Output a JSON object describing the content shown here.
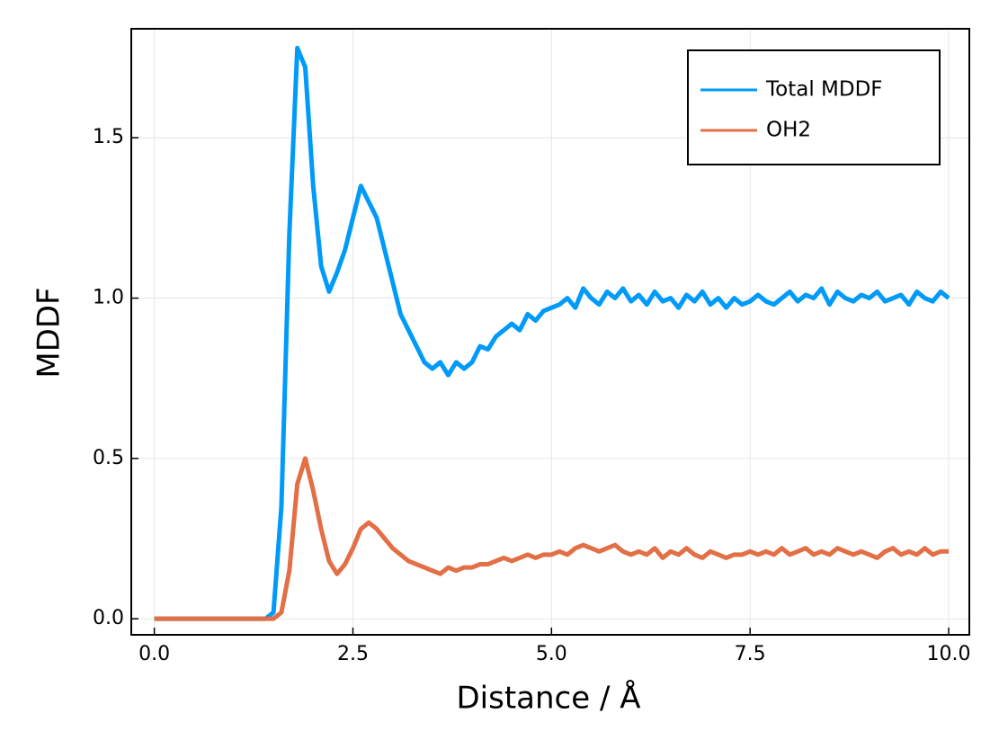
{
  "chart_data": {
    "type": "line",
    "x_label": "Distance / Å",
    "y_label": "MDDF",
    "x": [
      0,
      0.1,
      0.2,
      0.3,
      0.4,
      0.5,
      0.6,
      0.7,
      0.8,
      0.9,
      1,
      1.1,
      1.2,
      1.3,
      1.4,
      1.5,
      1.6,
      1.7,
      1.8,
      1.9,
      2,
      2.1,
      2.2,
      2.3,
      2.4,
      2.5,
      2.6,
      2.7,
      2.8,
      2.9,
      3,
      3.1,
      3.2,
      3.3,
      3.4,
      3.5,
      3.6,
      3.7,
      3.8,
      3.9,
      4,
      4.1,
      4.2,
      4.3,
      4.4,
      4.5,
      4.6,
      4.7,
      4.8,
      4.9,
      5,
      5.1,
      5.2,
      5.3,
      5.4,
      5.5,
      5.6,
      5.7,
      5.8,
      5.9,
      6,
      6.1,
      6.2,
      6.3,
      6.4,
      6.5,
      6.6,
      6.7,
      6.8,
      6.9,
      7,
      7.1,
      7.2,
      7.3,
      7.4,
      7.5,
      7.6,
      7.7,
      7.8,
      7.9,
      8,
      8.1,
      8.2,
      8.3,
      8.4,
      8.5,
      8.6,
      8.7,
      8.8,
      8.9,
      9,
      9.1,
      9.2,
      9.3,
      9.4,
      9.5,
      9.6,
      9.7,
      9.8,
      9.9,
      10
    ],
    "series": [
      {
        "name": "Total MDDF",
        "color": "#009af9",
        "values": [
          0,
          0,
          0,
          0,
          0,
          0,
          0,
          0,
          0,
          0,
          0,
          0,
          0,
          0,
          0,
          0.02,
          0.35,
          1.2,
          1.78,
          1.72,
          1.35,
          1.1,
          1.02,
          1.08,
          1.15,
          1.25,
          1.35,
          1.3,
          1.25,
          1.15,
          1.05,
          0.95,
          0.9,
          0.85,
          0.8,
          0.78,
          0.8,
          0.76,
          0.8,
          0.78,
          0.8,
          0.85,
          0.84,
          0.88,
          0.9,
          0.92,
          0.9,
          0.95,
          0.93,
          0.96,
          0.97,
          0.98,
          1.0,
          0.97,
          1.03,
          1.0,
          0.98,
          1.02,
          1.0,
          1.03,
          0.99,
          1.01,
          0.98,
          1.02,
          0.99,
          1.0,
          0.97,
          1.01,
          0.99,
          1.02,
          0.98,
          1.0,
          0.97,
          1.0,
          0.98,
          0.99,
          1.01,
          0.99,
          0.98,
          1.0,
          1.02,
          0.99,
          1.01,
          1.0,
          1.03,
          0.98,
          1.02,
          1.0,
          0.99,
          1.01,
          1.0,
          1.02,
          0.99,
          1.0,
          1.01,
          0.98,
          1.02,
          1.0,
          0.99,
          1.02,
          1.0
        ]
      },
      {
        "name": "OH2",
        "color": "#e26f46",
        "values": [
          0,
          0,
          0,
          0,
          0,
          0,
          0,
          0,
          0,
          0,
          0,
          0,
          0,
          0,
          0,
          0,
          0.02,
          0.15,
          0.42,
          0.5,
          0.4,
          0.28,
          0.18,
          0.14,
          0.17,
          0.22,
          0.28,
          0.3,
          0.28,
          0.25,
          0.22,
          0.2,
          0.18,
          0.17,
          0.16,
          0.15,
          0.14,
          0.16,
          0.15,
          0.16,
          0.16,
          0.17,
          0.17,
          0.18,
          0.19,
          0.18,
          0.19,
          0.2,
          0.19,
          0.2,
          0.2,
          0.21,
          0.2,
          0.22,
          0.23,
          0.22,
          0.21,
          0.22,
          0.23,
          0.21,
          0.2,
          0.21,
          0.2,
          0.22,
          0.19,
          0.21,
          0.2,
          0.22,
          0.2,
          0.19,
          0.21,
          0.2,
          0.19,
          0.2,
          0.2,
          0.21,
          0.2,
          0.21,
          0.2,
          0.22,
          0.2,
          0.21,
          0.22,
          0.2,
          0.21,
          0.2,
          0.22,
          0.21,
          0.2,
          0.21,
          0.2,
          0.19,
          0.21,
          0.22,
          0.2,
          0.21,
          0.2,
          0.22,
          0.2,
          0.21,
          0.21
        ]
      }
    ],
    "xlim": [
      -0.29,
      10.26
    ],
    "ylim": [
      -0.05,
      1.84
    ],
    "xticks": [
      {
        "value": 0,
        "label": "0.0"
      },
      {
        "value": 2.5,
        "label": "2.5"
      },
      {
        "value": 5,
        "label": "5.0"
      },
      {
        "value": 7.5,
        "label": "7.5"
      },
      {
        "value": 10,
        "label": "10.0"
      }
    ],
    "yticks": [
      {
        "value": 0,
        "label": "0.0"
      },
      {
        "value": 0.5,
        "label": "0.5"
      },
      {
        "value": 1,
        "label": "1.0"
      },
      {
        "value": 1.5,
        "label": "1.5"
      }
    ],
    "grid": true,
    "legend": "upper right"
  }
}
